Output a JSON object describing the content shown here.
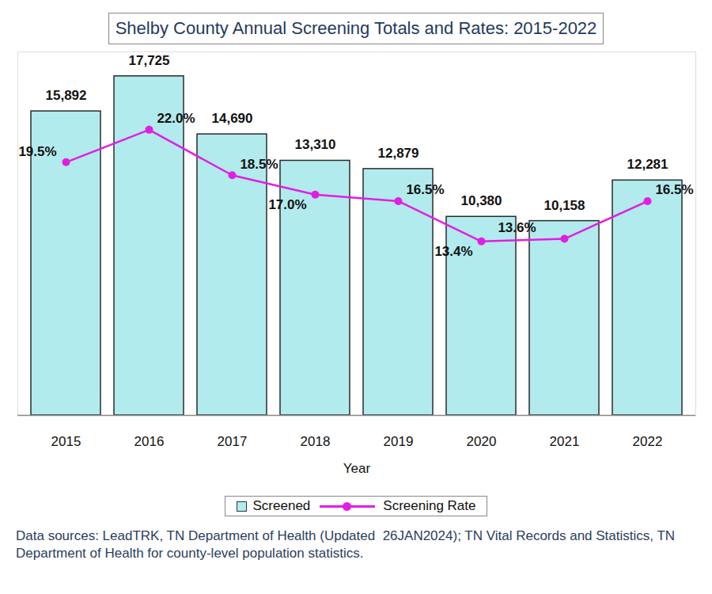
{
  "chart_data": {
    "type": "bar",
    "title": "Shelby County Annual Screening Totals and Rates: 2015-2022",
    "xlabel": "Year",
    "caption": "Data sources: LeadTRK, TN Department of Health (Updated  26JAN2024); TN Vital Records and Statistics, TN Department of Health for county-level population statistics.",
    "categories": [
      "2015",
      "2016",
      "2017",
      "2018",
      "2019",
      "2020",
      "2021",
      "2022"
    ],
    "series": [
      {
        "name": "Screened",
        "type": "bar",
        "color": "#b2ebee",
        "values": [
          15892,
          17725,
          14690,
          13310,
          12879,
          10380,
          10158,
          12281
        ],
        "value_labels": [
          "15,892",
          "17,725",
          "14,690",
          "13,310",
          "12,879",
          "10,380",
          "10,158",
          "12,281"
        ]
      },
      {
        "name": "Screening Rate",
        "type": "line",
        "axis": "y2",
        "color": "#e21ee2",
        "marker": "circle",
        "values": [
          19.5,
          22.0,
          18.5,
          17.0,
          16.5,
          13.4,
          13.6,
          16.5
        ],
        "value_labels": [
          "19.5%",
          "22.0%",
          "18.5%",
          "17.0%",
          "16.5%",
          "13.4%",
          "13.6%",
          "16.5%"
        ]
      }
    ],
    "ylim": [
      0,
      19000
    ],
    "y2lim": [
      0,
      28
    ],
    "grid": false,
    "legend": "bottom",
    "data_labels": true,
    "tick_labels": "x"
  }
}
